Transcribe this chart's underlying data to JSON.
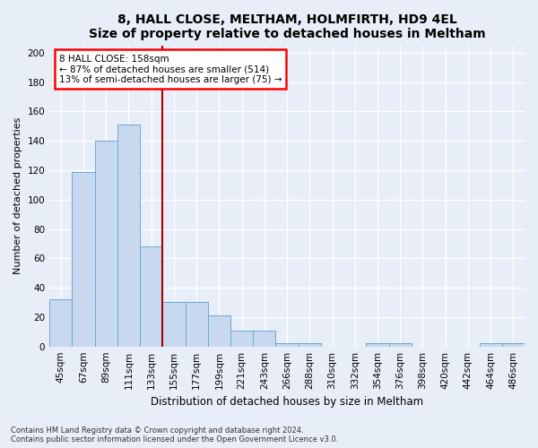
{
  "title1": "8, HALL CLOSE, MELTHAM, HOLMFIRTH, HD9 4EL",
  "title2": "Size of property relative to detached houses in Meltham",
  "xlabel": "Distribution of detached houses by size in Meltham",
  "ylabel": "Number of detached properties",
  "categories": [
    "45sqm",
    "67sqm",
    "89sqm",
    "111sqm",
    "133sqm",
    "155sqm",
    "177sqm",
    "199sqm",
    "221sqm",
    "243sqm",
    "266sqm",
    "288sqm",
    "310sqm",
    "332sqm",
    "354sqm",
    "376sqm",
    "398sqm",
    "420sqm",
    "442sqm",
    "464sqm",
    "486sqm"
  ],
  "values": [
    32,
    119,
    140,
    151,
    68,
    30,
    30,
    21,
    11,
    11,
    2,
    2,
    0,
    0,
    2,
    2,
    0,
    0,
    0,
    2,
    2
  ],
  "bar_color": "#c8d9ef",
  "bar_edge_color": "#6aaad4",
  "vline_color": "#aa0000",
  "vline_x": 4.5,
  "ylim": [
    0,
    205
  ],
  "yticks": [
    0,
    20,
    40,
    60,
    80,
    100,
    120,
    140,
    160,
    180,
    200
  ],
  "annotation_title": "8 HALL CLOSE: 158sqm",
  "annotation_line1": "← 87% of detached houses are smaller (514)",
  "annotation_line2": "13% of semi-detached houses are larger (75) →",
  "footnote1": "Contains HM Land Registry data © Crown copyright and database right 2024.",
  "footnote2": "Contains public sector information licensed under the Open Government Licence v3.0.",
  "bg_color": "#e8eef7",
  "plot_bg_color": "#e8eef7",
  "grid_color": "#ffffff",
  "title1_fontsize": 10,
  "title2_fontsize": 9,
  "ylabel_fontsize": 8,
  "xlabel_fontsize": 8.5,
  "tick_fontsize": 7.5,
  "annot_fontsize": 7.5,
  "footnote_fontsize": 6
}
